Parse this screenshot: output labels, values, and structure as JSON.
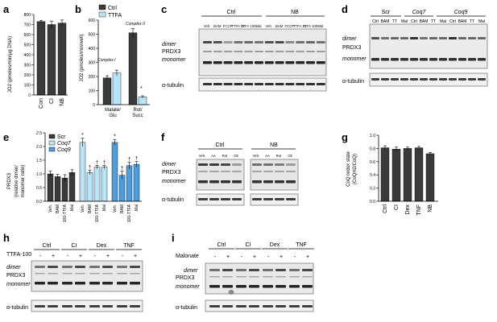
{
  "panels": {
    "a": {
      "label": "a",
      "ylabel": "JO2 (pmoles/min/µg DNA)",
      "categories": [
        "Con",
        "CI",
        "NB"
      ],
      "values": [
        730,
        700,
        715
      ],
      "errors": [
        12,
        35,
        30
      ],
      "ylim": [
        0,
        800
      ],
      "yticks": [
        "0",
        "100",
        "200",
        "300",
        "400",
        "500",
        "600",
        "700",
        "800"
      ]
    },
    "b": {
      "label": "b",
      "ylabel": "JO2 (pmoles/min/well)",
      "legend": [
        "Ctrl",
        "TTFA"
      ],
      "groups": [
        "Malate/ Glu",
        "Rot/ Succ"
      ],
      "annotations": [
        "Complex I",
        "Complex II",
        "*"
      ],
      "ylim": [
        0,
        600
      ],
      "yticks": [
        "0",
        "100",
        "200",
        "300",
        "400",
        "500",
        "600"
      ],
      "series": [
        {
          "name": "Ctrl",
          "values": [
            190,
            510
          ],
          "errors": [
            15,
            30
          ]
        },
        {
          "name": "TTFA",
          "values": [
            225,
            55
          ],
          "errors": [
            20,
            8
          ]
        }
      ]
    },
    "c": {
      "label": "c",
      "groups": [
        "Ctrl",
        "NB"
      ],
      "lanes": [
        "Veh.",
        "BAM",
        "FCCP",
        "TTFA 10",
        "TTFA 100",
        "Mal"
      ],
      "bands": [
        "dimer",
        "PRDX3",
        "monomer",
        "α-tubulin"
      ]
    },
    "d": {
      "label": "d",
      "groups": [
        "Scr",
        "Coq7",
        "Coq9"
      ],
      "lanes": [
        "Ctrl",
        "BAM",
        "TT",
        "Mal"
      ],
      "bands": [
        "dimer",
        "PRDX3",
        "monomer",
        "α-tubulin"
      ]
    },
    "e": {
      "label": "e",
      "ylabel": "PRDX3 (relative dimer/ monomer ratio)",
      "legend": [
        "Scr",
        "Coq7",
        "Coq9"
      ],
      "categories": [
        "Veh.",
        "BAM",
        "100-TTFA",
        "Mal"
      ],
      "ylim": [
        0,
        2.5
      ],
      "yticks": [
        "0.0",
        "0.5",
        "1.0",
        "1.5",
        "2.0",
        "2.5"
      ],
      "marks": [
        "*",
        "†"
      ],
      "series": [
        {
          "name": "Scr",
          "values": [
            1.0,
            0.9,
            0.85,
            1.05
          ],
          "errors": [
            0.1,
            0.08,
            0.12,
            0.1
          ]
        },
        {
          "name": "Coq7",
          "values": [
            2.15,
            1.05,
            1.25,
            1.25
          ],
          "errors": [
            0.15,
            0.08,
            0.06,
            0.06
          ]
        },
        {
          "name": "Coq9",
          "values": [
            2.15,
            0.95,
            1.3,
            1.35
          ],
          "errors": [
            0.1,
            0.15,
            0.12,
            0.1
          ]
        }
      ]
    },
    "f": {
      "label": "f",
      "groups": [
        "Ctrl",
        "NB"
      ],
      "lanes": [
        "Veh.",
        "AA",
        "Rot",
        "Ok"
      ],
      "bands": [
        "dimer",
        "PRDX3",
        "monomer",
        "α-tubulin"
      ]
    },
    "g": {
      "label": "g",
      "ylabel": "CoQ redox state (CoQH2/CoQ)",
      "categories": [
        "Ctrl",
        "CI",
        "Dex",
        "TNF",
        "NB"
      ],
      "values": [
        0.81,
        0.79,
        0.8,
        0.81,
        0.72
      ],
      "errors": [
        0.03,
        0.03,
        0.02,
        0.02,
        0.02
      ],
      "ylim": [
        0,
        1.0
      ],
      "yticks": [
        "0.0",
        "0.2",
        "0.4",
        "0.6",
        "0.8",
        "1.0"
      ]
    },
    "h": {
      "label": "h",
      "groups": [
        "Ctrl",
        "CI",
        "Dex",
        "TNF"
      ],
      "treatment": "TTFA-100",
      "signs": [
        "-",
        "+"
      ],
      "bands": [
        "dimer",
        "PRDX3",
        "monomer",
        "α-tubulin"
      ]
    },
    "i": {
      "label": "i",
      "groups": [
        "Ctrl",
        "CI",
        "Dex",
        "TNF"
      ],
      "treatment": "Malonate",
      "signs": [
        "-",
        "+"
      ],
      "bands": [
        "dimer",
        "PRDX3",
        "monomer",
        "α-tubulin"
      ]
    }
  },
  "colors": {
    "dark": "#3a3a3a",
    "light": "#b8e4f7",
    "mid": "#4a9fe0",
    "deep": "#1f5fa8"
  }
}
